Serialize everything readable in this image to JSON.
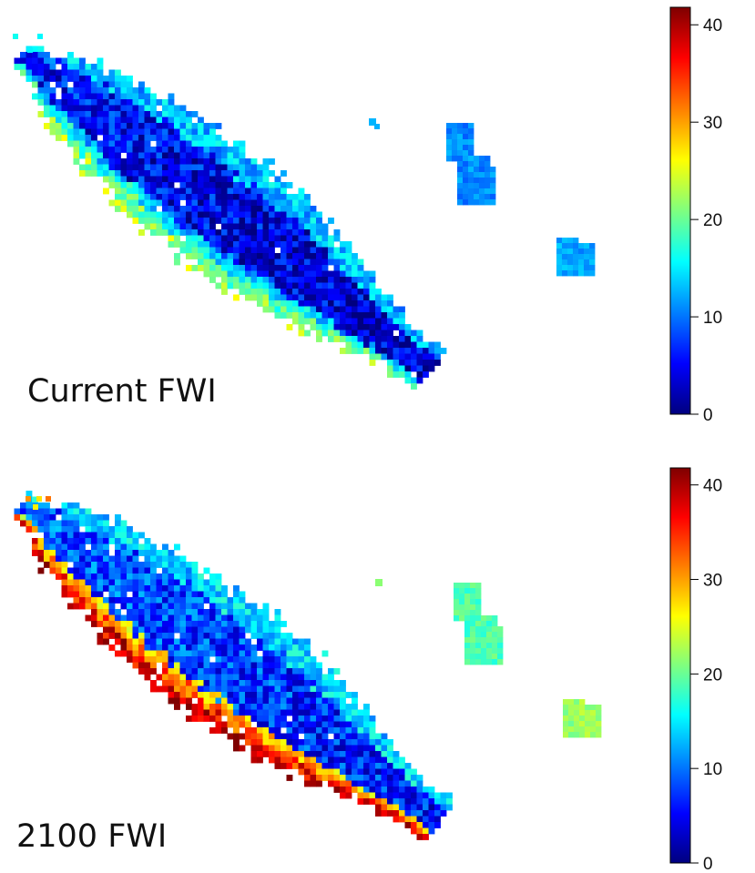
{
  "panels": [
    {
      "label": "Current FWI",
      "colorbar": {
        "min": 0,
        "max": 40,
        "ticks": [
          0,
          10,
          20,
          30,
          40
        ]
      }
    },
    {
      "label": "2100 FWI",
      "colorbar": {
        "min": 0,
        "max": 40,
        "ticks": [
          0,
          10,
          20,
          30,
          40
        ]
      }
    }
  ],
  "colormap": "jet",
  "colors": {
    "jet_stops": [
      "#00007f",
      "#0000ff",
      "#007fff",
      "#00ffff",
      "#7fff7f",
      "#ffff00",
      "#ff7f00",
      "#ff0000",
      "#7f0000"
    ]
  }
}
